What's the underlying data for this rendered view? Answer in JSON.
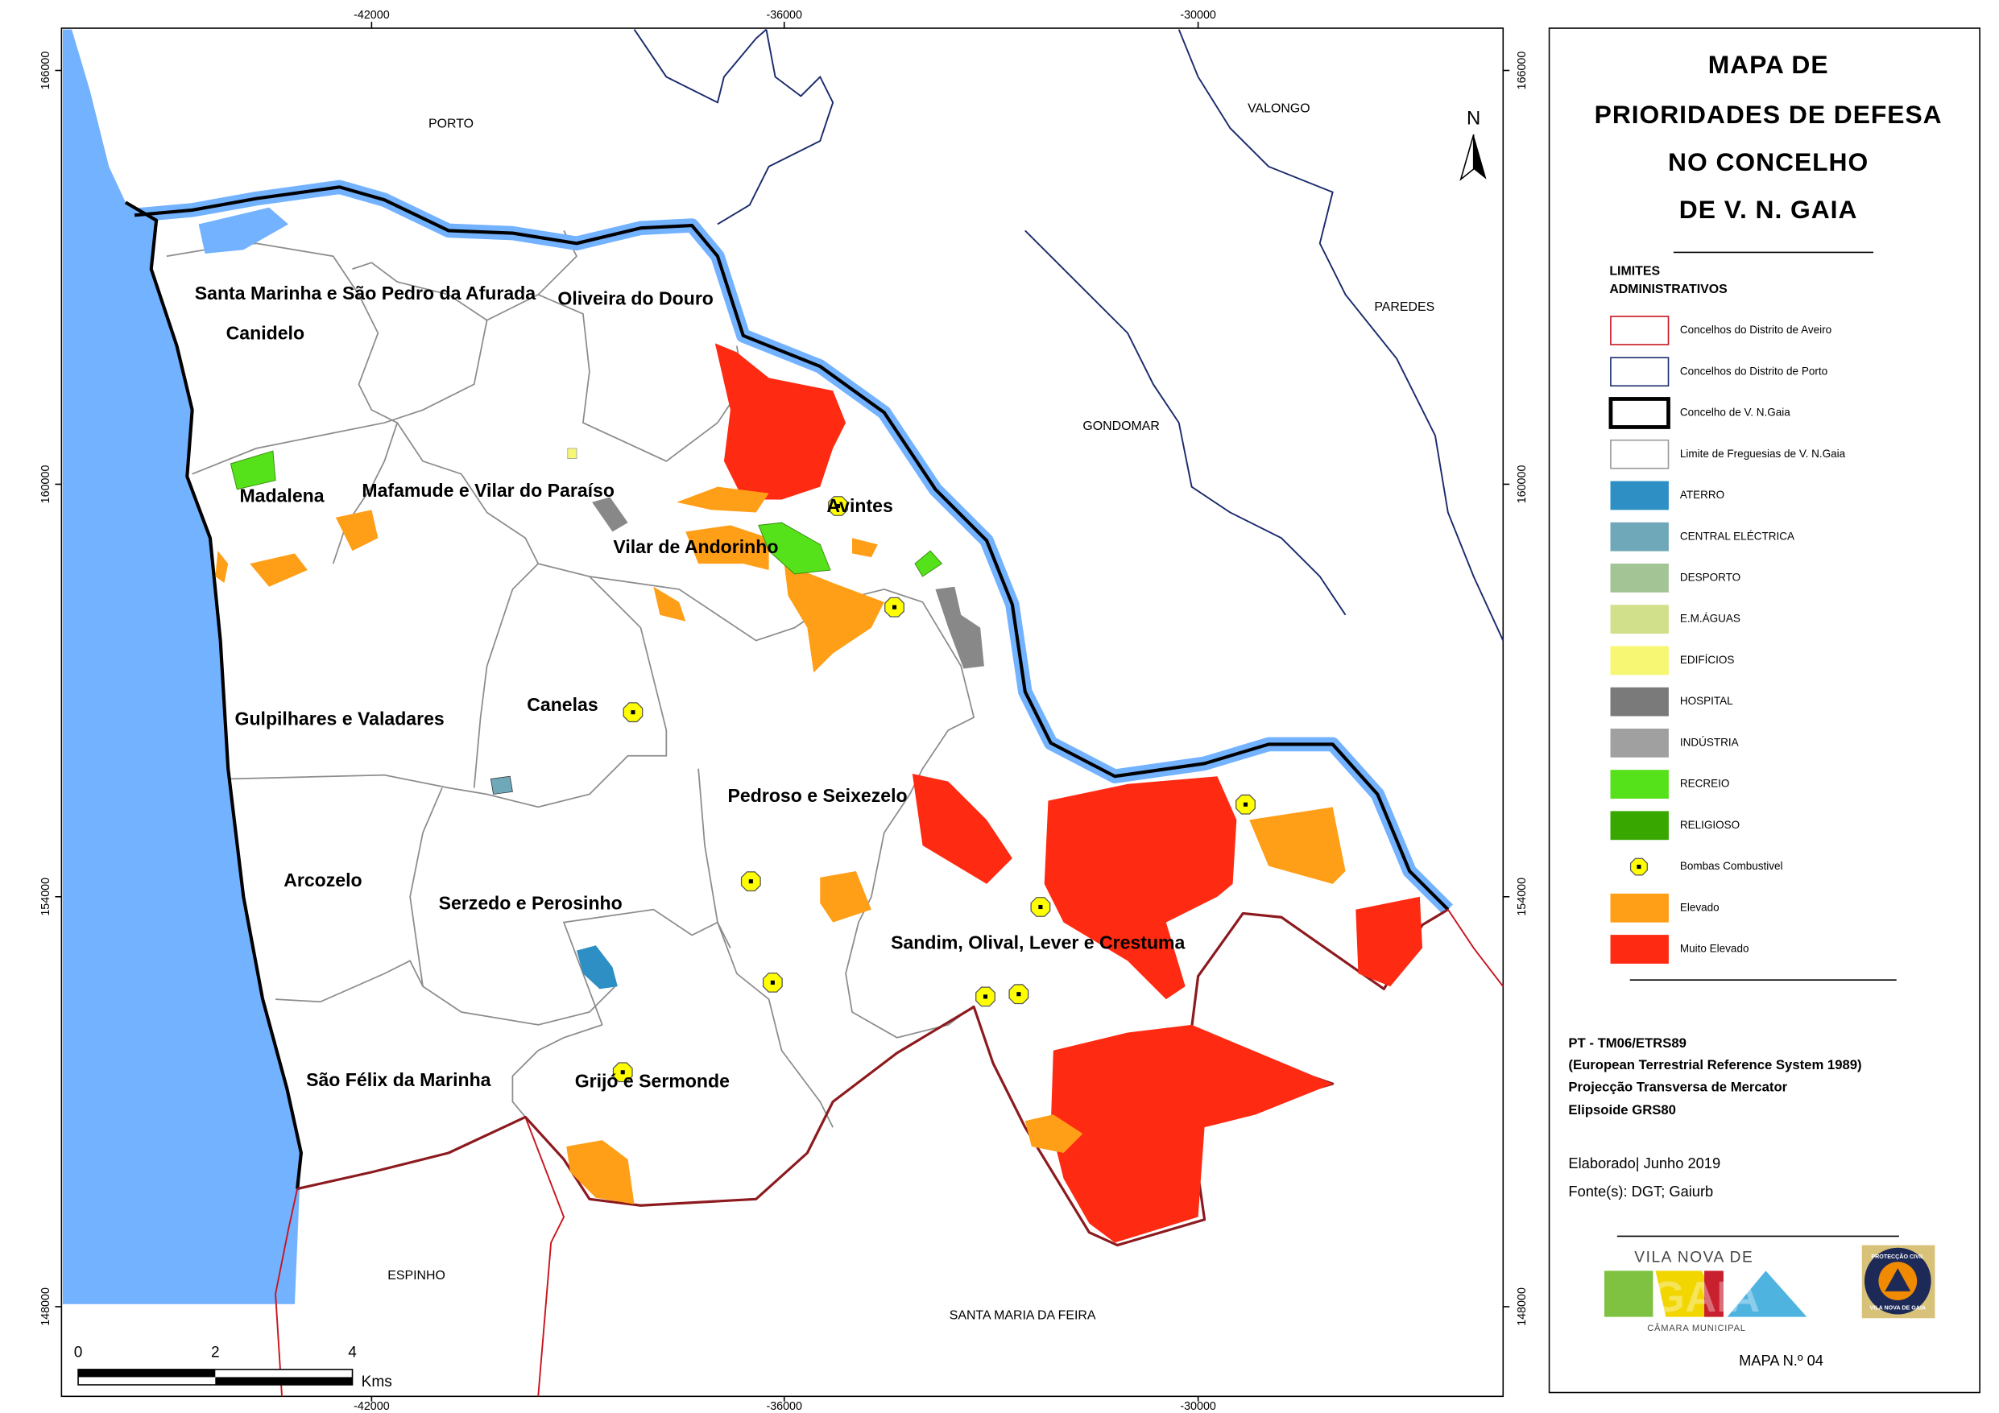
{
  "title": [
    "MAPA DE",
    "PRIORIDADES DE DEFESA",
    "NO CONCELHO",
    "DE V. N. GAIA"
  ],
  "grid": {
    "x_ticks": [
      -42000,
      -36000,
      -30000
    ],
    "y_ticks": [
      166000,
      160000,
      154000,
      148000
    ]
  },
  "north": "N",
  "municipalities": [
    "PORTO",
    "VALONGO",
    "PAREDES",
    "GONDOMAR",
    "ESPINHO",
    "SANTA MARIA DA FEIRA"
  ],
  "parishes": [
    "Santa Marinha e São Pedro da Afurada",
    "Oliveira do Douro",
    "Canidelo",
    "Madalena",
    "Mafamude e Vilar do Paraíso",
    "Avintes",
    "Vilar de Andorinho",
    "Canelas",
    "Gulpilhares e Valadares",
    "Pedroso e Seixezelo",
    "Arcozelo",
    "Serzedo e Perosinho",
    "Sandim, Olival, Lever e Crestuma",
    "São Félix da Marinha",
    "Grijó e Sermonde"
  ],
  "legend": {
    "heading": [
      "LIMITES",
      "ADMINISTRATIVOS"
    ],
    "items": [
      "Concelhos do Distrito de Aveiro",
      "Concelhos do Distrito de Porto",
      "Concelho de V. N.Gaia",
      "Limite de Freguesias de V. N.Gaia",
      "ATERRO",
      "CENTRAL ELÉCTRICA",
      "DESPORTO",
      "E.M.ÁGUAS",
      "EDIFÍCIOS",
      "HOSPITAL",
      "INDÚSTRIA",
      "RECREIO",
      "RELIGIOSO",
      "Bombas Combustivel",
      "Elevado",
      "Muito Elevado"
    ]
  },
  "projection": [
    "PT - TM06/ETRS89",
    "(European Terrestrial Reference System 1989)",
    "Projecção Transversa de Mercator",
    "Elipsoide GRS80"
  ],
  "credits": [
    "Elaborado| Junho 2019",
    "Fonte(s): DGT; Gaiurb"
  ],
  "scale": {
    "labels": [
      0,
      2,
      4
    ],
    "unit": "Kms"
  },
  "logos": {
    "gaia_top": "VILA NOVA DE",
    "gaia": "GAIA",
    "gaia_bottom": "CÂMARA MUNICIPAL",
    "civil_top": "PROTECÇÃO CIVIL",
    "civil_bottom": "VILA NOVA DE GAIA"
  },
  "map_number": "MAPA N.º 04"
}
